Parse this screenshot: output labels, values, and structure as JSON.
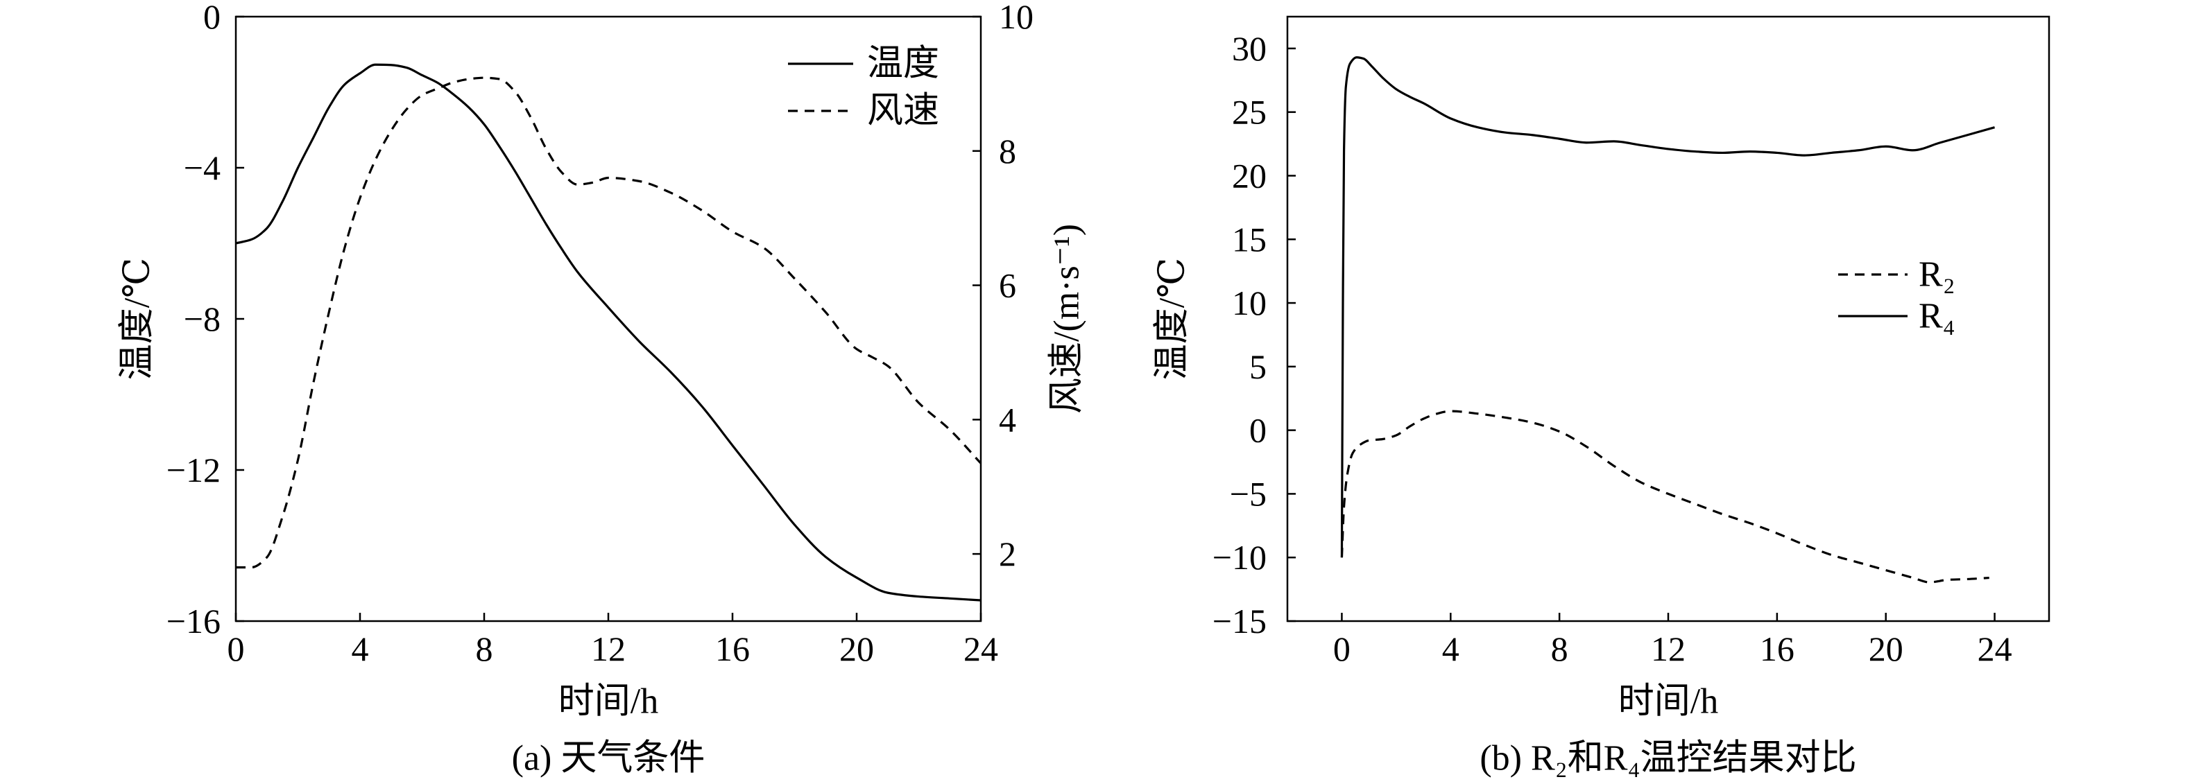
{
  "chart_data": [
    {
      "type": "line",
      "title": "(a) 天气条件",
      "xlabel": "时间/h",
      "ylabel": "温度/℃",
      "y2label": "风速/(m·s⁻¹)",
      "xlim": [
        0,
        24
      ],
      "ylim": [
        -16,
        0
      ],
      "y2lim": [
        1,
        10
      ],
      "x_ticks": [
        0,
        4,
        8,
        12,
        16,
        20,
        24
      ],
      "x_tick_labels": [
        "0",
        "4",
        "8",
        "12",
        "16",
        "20",
        "24"
      ],
      "y_ticks": [
        0,
        -4,
        -8,
        -12,
        -16
      ],
      "y_tick_labels": [
        "0",
        "−4",
        "−8",
        "−12",
        "−16"
      ],
      "y2_ticks": [
        10,
        8,
        6,
        4,
        2
      ],
      "y2_tick_labels": [
        "10",
        "8",
        "6",
        "4",
        "2"
      ],
      "grid": false,
      "legend": "top-right",
      "series": [
        {
          "name": "温度",
          "right_axis": false,
          "dashed": false,
          "color": "#000000",
          "x": [
            0,
            0.5,
            1,
            1.5,
            2,
            2.5,
            3,
            3.5,
            4,
            4.5,
            5,
            5.5,
            6,
            6.5,
            7,
            7.5,
            8,
            8.5,
            9,
            9.5,
            10,
            10.5,
            11,
            12,
            13,
            14,
            15,
            16,
            17,
            18,
            19,
            20,
            21,
            22,
            23,
            24
          ],
          "y": [
            -6.0,
            -5.9,
            -5.6,
            -4.9,
            -4.0,
            -3.2,
            -2.4,
            -1.8,
            -1.5,
            -1.27,
            -1.28,
            -1.35,
            -1.55,
            -1.75,
            -2.05,
            -2.4,
            -2.85,
            -3.45,
            -4.1,
            -4.8,
            -5.5,
            -6.15,
            -6.75,
            -7.7,
            -8.6,
            -9.4,
            -10.3,
            -11.35,
            -12.4,
            -13.45,
            -14.3,
            -14.85,
            -15.25,
            -15.35,
            -15.4,
            -15.45
          ]
        },
        {
          "name": "风速",
          "right_axis": true,
          "dashed": true,
          "color": "#000000",
          "x": [
            0,
            0.5,
            1,
            1.5,
            2,
            2.5,
            3,
            3.5,
            4,
            4.5,
            5,
            5.5,
            6,
            6.5,
            7,
            7.5,
            8,
            8.5,
            9,
            9.5,
            10,
            10.5,
            11,
            11.5,
            12,
            13,
            14,
            15,
            16,
            17,
            18,
            19,
            20,
            20.5,
            21,
            22,
            23,
            24
          ],
          "y": [
            1.8,
            1.8,
            1.95,
            2.55,
            3.4,
            4.55,
            5.6,
            6.55,
            7.3,
            7.87,
            8.3,
            8.62,
            8.83,
            8.93,
            9.02,
            9.07,
            9.09,
            9.07,
            8.88,
            8.5,
            8.03,
            7.68,
            7.5,
            7.53,
            7.6,
            7.55,
            7.38,
            7.12,
            6.8,
            6.56,
            6.1,
            5.6,
            5.05,
            4.93,
            4.8,
            4.25,
            3.85,
            3.35
          ]
        }
      ]
    },
    {
      "type": "line",
      "title": "(b) R₂和R₄温控结果对比",
      "xlabel": "时间/h",
      "ylabel": "温度/℃",
      "xlim": [
        -2,
        26
      ],
      "ylim": [
        -15,
        32.5
      ],
      "x_ticks": [
        0,
        4,
        8,
        12,
        16,
        20,
        24
      ],
      "x_tick_labels": [
        "0",
        "4",
        "8",
        "12",
        "16",
        "20",
        "24"
      ],
      "y_ticks": [
        30,
        25,
        20,
        15,
        10,
        5,
        0,
        -5,
        -10,
        -15
      ],
      "y_tick_labels": [
        "30",
        "25",
        "20",
        "15",
        "10",
        "5",
        "0",
        "−5",
        "−10",
        "−15"
      ],
      "grid": false,
      "legend": "center-right",
      "series": [
        {
          "name": "R₂",
          "dashed": true,
          "color": "#000000",
          "x": [
            0,
            0.08,
            0.2,
            0.4,
            0.7,
            1,
            1.5,
            2,
            2.5,
            3,
            3.5,
            4,
            5,
            6,
            7,
            8,
            9,
            10,
            11,
            12,
            13,
            14,
            15,
            16,
            17,
            18,
            19,
            20,
            21,
            21.6,
            22.3,
            23,
            23.8
          ],
          "y": [
            -10,
            -6,
            -3.5,
            -1.8,
            -1.1,
            -0.8,
            -0.7,
            -0.4,
            0.3,
            0.9,
            1.3,
            1.5,
            1.3,
            1.0,
            0.6,
            -0.1,
            -1.3,
            -2.8,
            -4.1,
            -5.0,
            -5.8,
            -6.6,
            -7.3,
            -8.1,
            -9.0,
            -9.8,
            -10.4,
            -11.0,
            -11.6,
            -11.95,
            -11.75,
            -11.7,
            -11.6
          ]
        },
        {
          "name": "R₄",
          "dashed": false,
          "color": "#000000",
          "x": [
            0,
            0.04,
            0.08,
            0.15,
            0.3,
            0.55,
            0.8,
            1.1,
            1.5,
            2,
            2.5,
            3,
            4,
            5,
            6,
            7,
            8,
            9,
            10,
            11,
            12,
            13,
            14,
            15,
            16,
            17,
            18,
            19,
            20,
            21,
            22,
            23,
            24
          ],
          "y": [
            -10,
            10,
            22,
            27,
            28.8,
            29.3,
            29.2,
            28.6,
            27.7,
            26.8,
            26.2,
            25.7,
            24.5,
            23.8,
            23.4,
            23.2,
            22.9,
            22.6,
            22.7,
            22.4,
            22.1,
            21.9,
            21.8,
            21.9,
            21.8,
            21.6,
            21.8,
            22.0,
            22.3,
            22.0,
            22.6,
            23.2,
            23.8
          ]
        }
      ]
    }
  ]
}
